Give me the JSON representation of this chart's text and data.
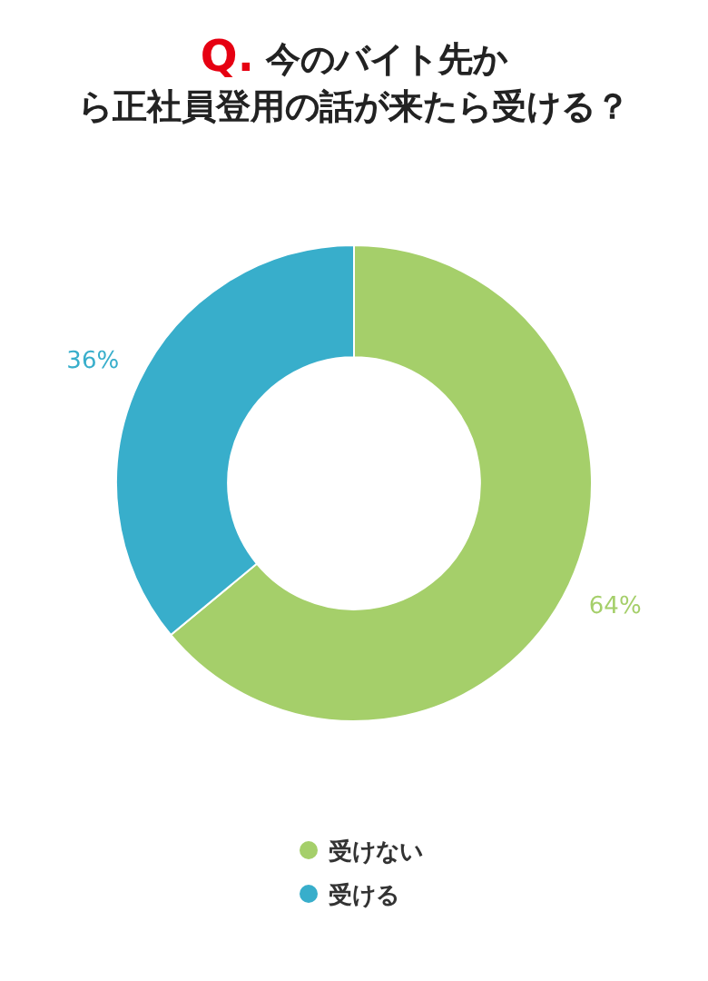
{
  "chart_data": {
    "type": "donut",
    "title": "Q. 今のバイト先から正社員登用の話が来たら受ける？",
    "categories": [
      "受けない",
      "受ける"
    ],
    "values": [
      64,
      36
    ],
    "value_labels": [
      "64%",
      "36%"
    ],
    "colors": [
      "#a5cf6a",
      "#38aecb"
    ],
    "legend": "bottom"
  }
}
